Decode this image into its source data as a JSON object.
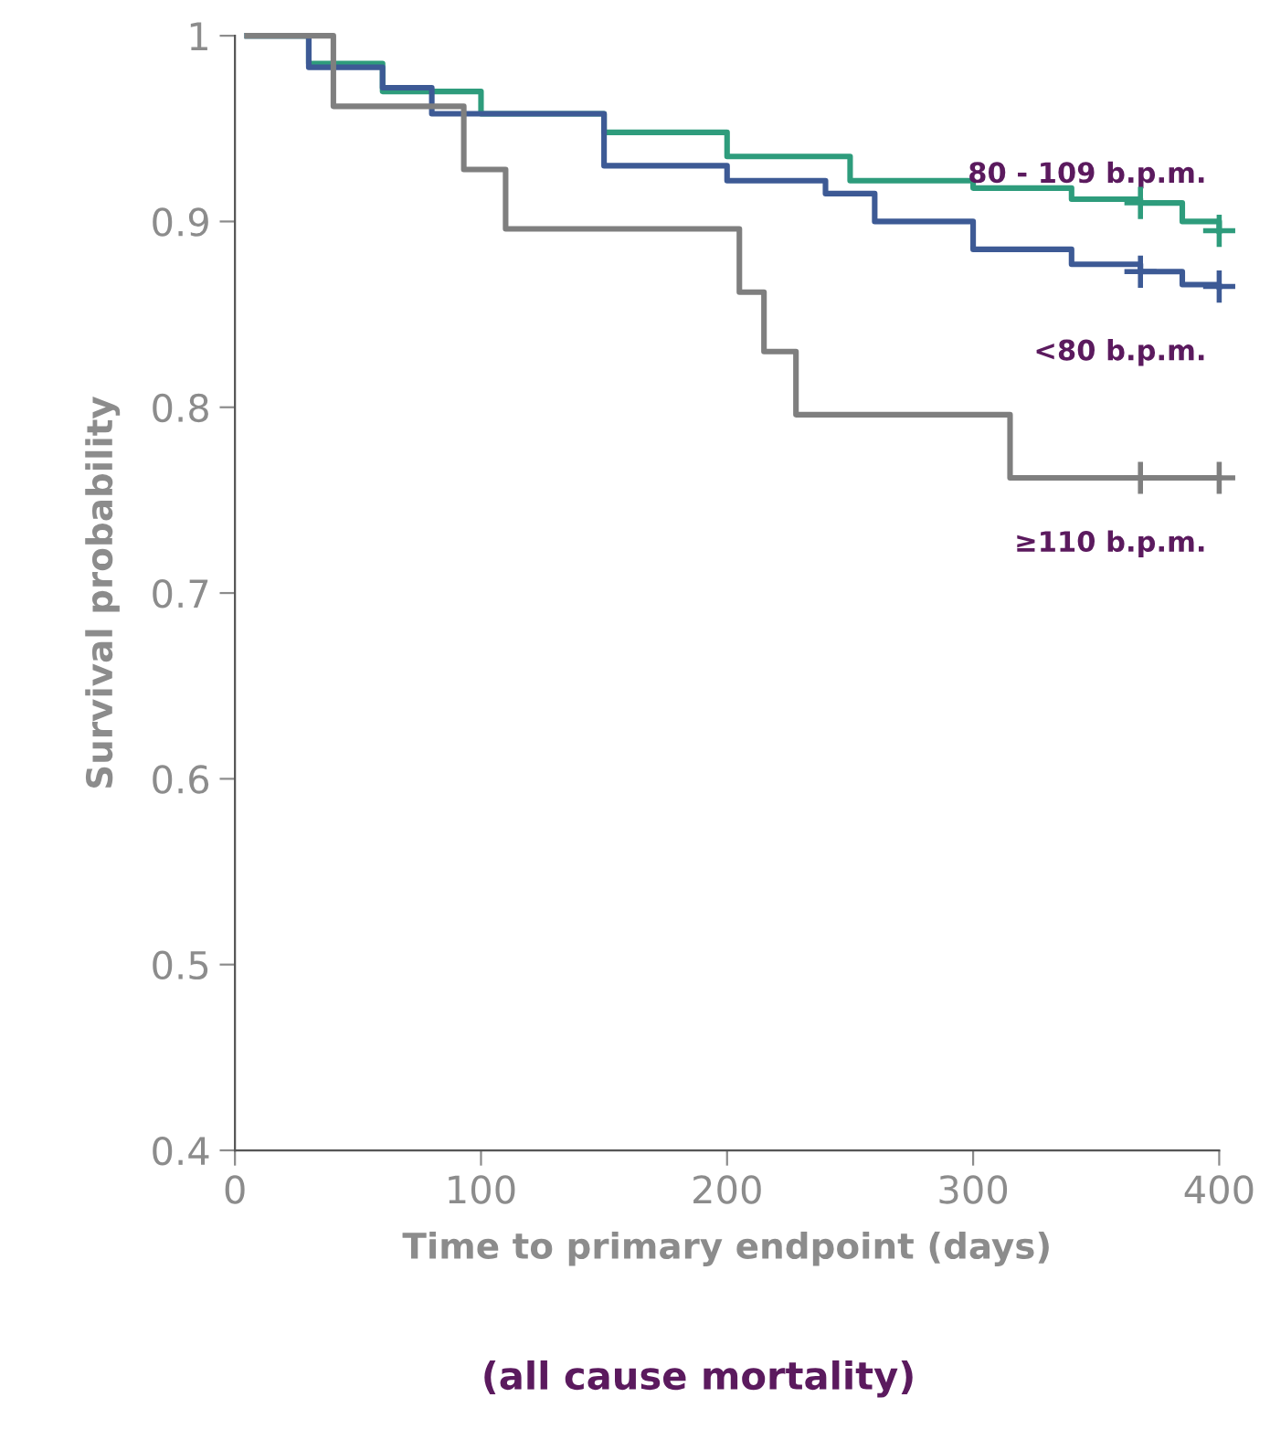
{
  "chart_data": {
    "type": "step",
    "xlabel": "Time to primary endpoint (days)",
    "ylabel": "Survival probability",
    "annotations": [
      "(all cause mortality)"
    ],
    "xlim": [
      0,
      400
    ],
    "ylim": [
      0.4,
      1
    ],
    "xticks": [
      0,
      100,
      200,
      300,
      400
    ],
    "yticks": [
      0.4,
      0.5,
      0.6,
      0.7,
      0.8,
      0.9,
      {
        "value": 1,
        "label": "1"
      }
    ],
    "grid": false,
    "legend": false,
    "series": [
      {
        "name": "80 - 109 b.p.m.",
        "color": "#2e9c7c",
        "x": [
          5,
          30,
          60,
          100,
          150,
          200,
          250,
          300,
          340,
          368,
          385,
          400
        ],
        "values": [
          1,
          0.985,
          0.97,
          0.958,
          0.948,
          0.935,
          0.922,
          0.918,
          0.912,
          0.91,
          0.9,
          0.895
        ]
      },
      {
        "name": "<80 b.p.m.",
        "color": "#3d5a95",
        "x": [
          5,
          30,
          60,
          80,
          100,
          150,
          200,
          240,
          260,
          300,
          340,
          368,
          385,
          400
        ],
        "values": [
          1,
          0.983,
          0.972,
          0.958,
          0.958,
          0.93,
          0.922,
          0.915,
          0.9,
          0.885,
          0.877,
          0.873,
          0.866,
          0.865
        ]
      },
      {
        "name": "≥110 b.p.m.",
        "color": "#7f7f7f",
        "x": [
          5,
          40,
          93,
          110,
          205,
          215,
          228,
          315,
          400
        ],
        "values": [
          1,
          0.962,
          0.928,
          0.896,
          0.862,
          0.83,
          0.796,
          0.762,
          0.762
        ]
      },
      {
        "type": "scatter",
        "marker": "cross",
        "color": "#2e9c7c",
        "x": [
          368,
          400
        ],
        "values": [
          0.91,
          0.895
        ]
      },
      {
        "type": "scatter",
        "marker": "cross",
        "color": "#3d5a95",
        "x": [
          368,
          400
        ],
        "values": [
          0.873,
          0.865
        ]
      },
      {
        "type": "scatter",
        "marker": "cross",
        "color": "#7f7f7f",
        "x": [
          368,
          400
        ],
        "values": [
          0.762,
          0.762
        ]
      }
    ]
  }
}
